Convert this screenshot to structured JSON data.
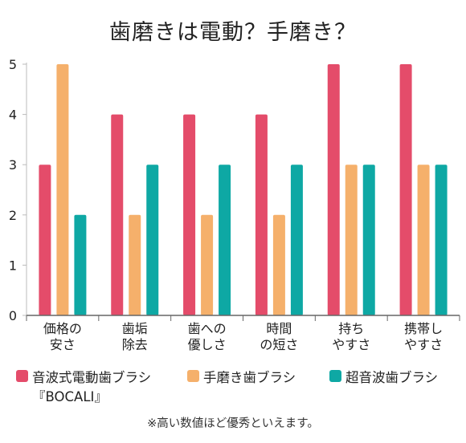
{
  "chart_data": {
    "type": "bar",
    "title": "歯磨きは電動？手磨き？",
    "categories": [
      [
        "価格の",
        "安さ"
      ],
      [
        "歯垢",
        "除去"
      ],
      [
        "歯への",
        "優しさ"
      ],
      [
        "時間",
        "の短さ"
      ],
      [
        "持ち",
        "やすさ"
      ],
      [
        "携帯し",
        "やすさ"
      ]
    ],
    "series": [
      {
        "name": "音波式電動歯ブラシ『BOCALI』",
        "color": "#e44c6a",
        "values": [
          3,
          4,
          4,
          4,
          5,
          5
        ]
      },
      {
        "name": "手磨き歯ブラシ",
        "color": "#f5b06b",
        "values": [
          5,
          2,
          2,
          2,
          3,
          3
        ]
      },
      {
        "name": "超音波歯ブラシ",
        "color": "#0ea8a4",
        "values": [
          2,
          3,
          3,
          3,
          3,
          3
        ]
      }
    ],
    "ylim": [
      0,
      5
    ],
    "yticks": [
      "0",
      "1",
      "2",
      "3",
      "4",
      "5"
    ],
    "xlabel": "",
    "ylabel": "",
    "grid": false,
    "legend_position": "bottom",
    "footnote": "※高い数値ほど優秀といえます。"
  }
}
